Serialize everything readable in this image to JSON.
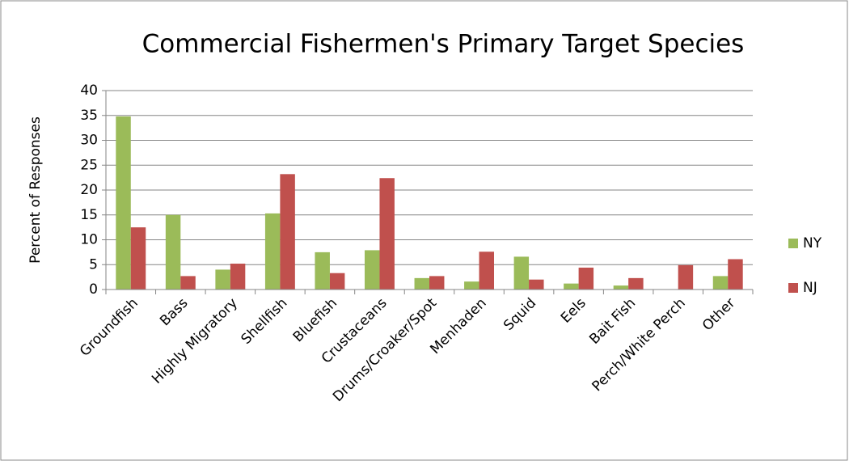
{
  "chart_data": {
    "type": "bar",
    "title": "Commercial Fishermen's Primary Target Species",
    "y_label": "Percent of Responses",
    "categories": [
      "Groundfish",
      "Bass",
      "Highly Migratory",
      "Shellfish",
      "Bluefish",
      "Crustaceans",
      "Drums/Croaker/Spot",
      "Menhaden",
      "Squid",
      "Eels",
      "Bait Fish",
      "Perch/White Perch",
      "Other"
    ],
    "series": [
      {
        "name": "NY",
        "color": "#9bbb59",
        "values": [
          34.8,
          15,
          4,
          15.3,
          7.5,
          7.9,
          2.3,
          1.6,
          6.6,
          1.2,
          0.8,
          0,
          2.7
        ]
      },
      {
        "name": "NJ",
        "color": "#c0504d",
        "values": [
          12.5,
          2.7,
          5.2,
          23.2,
          3.3,
          22.4,
          2.7,
          7.6,
          2.0,
          4.4,
          2.3,
          4.9,
          6.1
        ]
      }
    ],
    "ylim": [
      0,
      40
    ],
    "yticks": [
      0,
      5,
      10,
      15,
      20,
      25,
      30,
      35,
      40
    ],
    "grid": true,
    "legend": "right"
  }
}
